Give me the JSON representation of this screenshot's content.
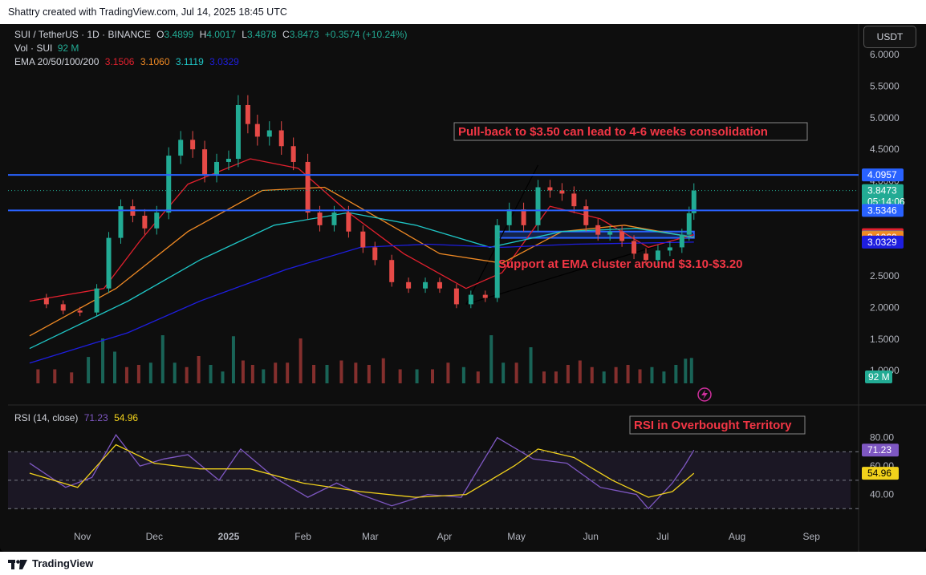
{
  "header": {
    "credit": "Shattry created with TradingView.com, Jul 14, 2025 18:45 UTC"
  },
  "legend": {
    "symbol": "SUI / TetherUS · 1D · BINANCE",
    "o_label": "O",
    "o": "3.4899",
    "h_label": "H",
    "h": "4.0017",
    "l_label": "L",
    "l": "3.4878",
    "c_label": "C",
    "c": "3.8473",
    "change": "+0.3574 (+10.24%)",
    "vol_label": "Vol · SUI",
    "vol": "92 M",
    "ema_label": "EMA 20/50/100/200",
    "ema20": "3.1506",
    "ema50": "3.1060",
    "ema100": "3.1119",
    "ema200": "3.0329",
    "rsi_label": "RSI (14, close)",
    "rsi": "71.23",
    "rsi_ma": "54.96"
  },
  "unit_button": "USDT",
  "footer": {
    "brand": "TradingView"
  },
  "colors": {
    "up": "#22ab94",
    "down": "#e64a47",
    "ema20": "#e2202e",
    "ema50": "#f08a24",
    "ema100": "#1fc6c6",
    "ema200": "#1e1ee0",
    "level": "#2962ff",
    "rsi": "#7e57c2",
    "rsi_ma": "#f2d21b",
    "annotation": "#f23645"
  },
  "chart_data": [
    {
      "type": "candlestick",
      "title": "SUI / TetherUS · 1D · BINANCE",
      "x_axis_labels": [
        "Nov",
        "Dec",
        "2025",
        "Feb",
        "Mar",
        "Apr",
        "May",
        "Jun",
        "Jul",
        "Aug",
        "Sep"
      ],
      "x_axis_dates": [
        "2024-11-01",
        "2024-12-01",
        "2025-01-01",
        "2025-02-01",
        "2025-03-01",
        "2025-04-01",
        "2025-05-01",
        "2025-06-01",
        "2025-07-01",
        "2025-08-01",
        "2025-09-01"
      ],
      "y_axis_labels": [
        "6.0000",
        "5.5000",
        "5.0000",
        "4.5000",
        "4.0000",
        "3.5000",
        "3.0000",
        "2.5000",
        "2.0000",
        "1.5000",
        "1.0000"
      ],
      "y_axis_values": [
        6.0,
        5.5,
        5.0,
        4.5,
        4.0,
        3.5,
        3.0,
        2.5,
        2.0,
        1.5,
        1.0
      ],
      "ylim": [
        0.8,
        6.1
      ],
      "price_series": {
        "name": "SUIUSDT",
        "points": [
          {
            "date": "2024-10-10",
            "close": 2.15
          },
          {
            "date": "2024-10-17",
            "close": 2.05
          },
          {
            "date": "2024-10-24",
            "close": 1.95
          },
          {
            "date": "2024-10-31",
            "close": 1.92
          },
          {
            "date": "2024-11-07",
            "close": 2.3
          },
          {
            "date": "2024-11-12",
            "close": 3.1
          },
          {
            "date": "2024-11-17",
            "close": 3.6
          },
          {
            "date": "2024-11-22",
            "close": 3.45
          },
          {
            "date": "2024-11-27",
            "close": 3.25
          },
          {
            "date": "2024-12-02",
            "close": 3.5
          },
          {
            "date": "2024-12-07",
            "close": 4.4
          },
          {
            "date": "2024-12-12",
            "close": 4.65
          },
          {
            "date": "2024-12-17",
            "close": 4.5
          },
          {
            "date": "2024-12-22",
            "close": 4.1
          },
          {
            "date": "2024-12-27",
            "close": 4.3
          },
          {
            "date": "2025-01-01",
            "close": 4.35
          },
          {
            "date": "2025-01-05",
            "close": 5.2
          },
          {
            "date": "2025-01-09",
            "close": 4.9
          },
          {
            "date": "2025-01-13",
            "close": 4.7
          },
          {
            "date": "2025-01-18",
            "close": 4.8
          },
          {
            "date": "2025-01-23",
            "close": 4.55
          },
          {
            "date": "2025-01-28",
            "close": 4.3
          },
          {
            "date": "2025-02-03",
            "close": 3.5
          },
          {
            "date": "2025-02-08",
            "close": 3.3
          },
          {
            "date": "2025-02-14",
            "close": 3.5
          },
          {
            "date": "2025-02-20",
            "close": 3.2
          },
          {
            "date": "2025-02-26",
            "close": 2.95
          },
          {
            "date": "2025-03-03",
            "close": 2.75
          },
          {
            "date": "2025-03-10",
            "close": 2.4
          },
          {
            "date": "2025-03-17",
            "close": 2.3
          },
          {
            "date": "2025-03-24",
            "close": 2.4
          },
          {
            "date": "2025-03-30",
            "close": 2.3
          },
          {
            "date": "2025-04-06",
            "close": 2.05
          },
          {
            "date": "2025-04-12",
            "close": 2.2
          },
          {
            "date": "2025-04-18",
            "close": 2.15
          },
          {
            "date": "2025-04-23",
            "close": 3.3
          },
          {
            "date": "2025-04-28",
            "close": 3.55
          },
          {
            "date": "2025-05-04",
            "close": 3.3
          },
          {
            "date": "2025-05-10",
            "close": 3.9
          },
          {
            "date": "2025-05-15",
            "close": 3.85
          },
          {
            "date": "2025-05-20",
            "close": 3.8
          },
          {
            "date": "2025-05-25",
            "close": 3.6
          },
          {
            "date": "2025-05-30",
            "close": 3.3
          },
          {
            "date": "2025-06-04",
            "close": 3.15
          },
          {
            "date": "2025-06-09",
            "close": 3.2
          },
          {
            "date": "2025-06-14",
            "close": 3.05
          },
          {
            "date": "2025-06-19",
            "close": 2.85
          },
          {
            "date": "2025-06-24",
            "close": 2.75
          },
          {
            "date": "2025-06-29",
            "close": 2.9
          },
          {
            "date": "2025-07-04",
            "close": 2.95
          },
          {
            "date": "2025-07-09",
            "close": 3.15
          },
          {
            "date": "2025-07-12",
            "close": 3.49
          },
          {
            "date": "2025-07-14",
            "close": 3.8473
          }
        ]
      },
      "ema_series": [
        {
          "name": "EMA 20",
          "last": 3.1506,
          "points": [
            [
              "2024-10-10",
              2.1
            ],
            [
              "2024-11-10",
              2.3
            ],
            [
              "2024-11-25",
              3.05
            ],
            [
              "2024-12-15",
              3.95
            ],
            [
              "2025-01-10",
              4.35
            ],
            [
              "2025-01-30",
              4.2
            ],
            [
              "2025-02-20",
              3.5
            ],
            [
              "2025-03-15",
              2.85
            ],
            [
              "2025-04-10",
              2.3
            ],
            [
              "2025-04-25",
              2.55
            ],
            [
              "2025-05-15",
              3.6
            ],
            [
              "2025-06-05",
              3.4
            ],
            [
              "2025-06-25",
              2.95
            ],
            [
              "2025-07-14",
              3.1506
            ]
          ]
        },
        {
          "name": "EMA 50",
          "last": 3.106,
          "points": [
            [
              "2024-10-10",
              1.55
            ],
            [
              "2024-11-15",
              2.3
            ],
            [
              "2024-12-15",
              3.2
            ],
            [
              "2025-01-15",
              3.85
            ],
            [
              "2025-02-10",
              3.9
            ],
            [
              "2025-03-05",
              3.4
            ],
            [
              "2025-03-30",
              2.85
            ],
            [
              "2025-04-25",
              2.7
            ],
            [
              "2025-05-20",
              3.2
            ],
            [
              "2025-06-15",
              3.3
            ],
            [
              "2025-07-14",
              3.106
            ]
          ]
        },
        {
          "name": "EMA 100",
          "last": 3.1119,
          "points": [
            [
              "2024-10-10",
              1.35
            ],
            [
              "2024-11-20",
              2.1
            ],
            [
              "2024-12-20",
              2.75
            ],
            [
              "2025-01-20",
              3.3
            ],
            [
              "2025-02-20",
              3.5
            ],
            [
              "2025-03-20",
              3.3
            ],
            [
              "2025-04-20",
              2.95
            ],
            [
              "2025-05-20",
              3.2
            ],
            [
              "2025-06-20",
              3.25
            ],
            [
              "2025-07-14",
              3.1119
            ]
          ]
        },
        {
          "name": "EMA 200",
          "last": 3.0329,
          "points": [
            [
              "2024-10-10",
              1.12
            ],
            [
              "2024-11-20",
              1.6
            ],
            [
              "2024-12-20",
              2.1
            ],
            [
              "2025-01-25",
              2.6
            ],
            [
              "2025-02-25",
              2.95
            ],
            [
              "2025-03-25",
              3.0
            ],
            [
              "2025-04-25",
              2.95
            ],
            [
              "2025-05-25",
              3.0
            ],
            [
              "2025-06-25",
              3.02
            ],
            [
              "2025-07-14",
              3.0329
            ]
          ]
        }
      ],
      "horizontal_levels": [
        {
          "label": "4.0957",
          "value": 4.0957
        },
        {
          "label": "3.5346",
          "value": 3.5346
        }
      ],
      "support_zone": {
        "from": 3.1,
        "to": 3.2,
        "start": "2025-04-23",
        "end": "2025-07-14"
      },
      "trendlines": [
        {
          "from": [
            "2025-04-10",
            2.05
          ],
          "to": [
            "2025-05-10",
            4.25
          ]
        },
        {
          "from": [
            "2025-04-10",
            2.05
          ],
          "to": [
            "2025-07-14",
            3.15
          ]
        }
      ],
      "price_labels": [
        {
          "text": "4.0957",
          "value": 4.0957,
          "color": "#2962ff"
        },
        {
          "text": "3.8473",
          "value": 3.8473,
          "color": "#22ab94"
        },
        {
          "text": "05:14:06",
          "value": 3.67,
          "color": "#22ab94"
        },
        {
          "text": "3.5346",
          "value": 3.5346,
          "color": "#2962ff"
        },
        {
          "text": "3.1506",
          "value": 3.1506,
          "color": "#e2202e"
        },
        {
          "text": "3.1119",
          "value": 3.1119,
          "color": "#1fc6c6"
        },
        {
          "text": "3.1060",
          "value": 3.106,
          "color": "#f08a24"
        },
        {
          "text": "3.0329",
          "value": 3.0329,
          "color": "#1e1ee0"
        }
      ],
      "volume": {
        "last_label": "92 M"
      },
      "annotations": [
        {
          "text": "Pull-back to $3.50 can lead to 4-6 weeks  consolidation",
          "boxed": true
        },
        {
          "text": "Support at EMA cluster around $3.10-$3.20",
          "boxed": false
        }
      ]
    },
    {
      "type": "line",
      "title": "RSI (14, close)",
      "y_axis_labels": [
        "80.00",
        "60.00",
        "40.00"
      ],
      "y_axis_values": [
        80,
        60,
        40
      ],
      "ylim": [
        20,
        90
      ],
      "band": [
        30,
        70
      ],
      "series": [
        {
          "name": "RSI",
          "last": 71.23,
          "points": [
            [
              "2024-10-10",
              62
            ],
            [
              "2024-10-25",
              45
            ],
            [
              "2024-11-05",
              52
            ],
            [
              "2024-11-15",
              82
            ],
            [
              "2024-11-25",
              60
            ],
            [
              "2024-12-05",
              65
            ],
            [
              "2024-12-15",
              68
            ],
            [
              "2024-12-28",
              50
            ],
            [
              "2025-01-06",
              72
            ],
            [
              "2025-01-20",
              52
            ],
            [
              "2025-02-03",
              38
            ],
            [
              "2025-02-15",
              48
            ],
            [
              "2025-02-25",
              40
            ],
            [
              "2025-03-10",
              32
            ],
            [
              "2025-03-25",
              40
            ],
            [
              "2025-04-08",
              38
            ],
            [
              "2025-04-23",
              80
            ],
            [
              "2025-05-08",
              65
            ],
            [
              "2025-05-22",
              62
            ],
            [
              "2025-06-05",
              45
            ],
            [
              "2025-06-20",
              40
            ],
            [
              "2025-06-25",
              30
            ],
            [
              "2025-07-05",
              48
            ],
            [
              "2025-07-10",
              60
            ],
            [
              "2025-07-14",
              71.23
            ]
          ]
        },
        {
          "name": "RSI MA",
          "last": 54.96,
          "points": [
            [
              "2024-10-10",
              55
            ],
            [
              "2024-10-30",
              45
            ],
            [
              "2024-11-15",
              75
            ],
            [
              "2024-12-01",
              62
            ],
            [
              "2024-12-20",
              58
            ],
            [
              "2025-01-10",
              58
            ],
            [
              "2025-02-01",
              48
            ],
            [
              "2025-02-25",
              42
            ],
            [
              "2025-03-20",
              38
            ],
            [
              "2025-04-10",
              40
            ],
            [
              "2025-04-30",
              60
            ],
            [
              "2025-05-10",
              72
            ],
            [
              "2025-05-25",
              66
            ],
            [
              "2025-06-10",
              50
            ],
            [
              "2025-06-25",
              38
            ],
            [
              "2025-07-05",
              42
            ],
            [
              "2025-07-14",
              54.96
            ]
          ]
        }
      ],
      "price_labels": [
        {
          "text": "71.23",
          "value": 71.23,
          "color": "#7e57c2"
        },
        {
          "text": "54.96",
          "value": 54.96,
          "color": "#f2d21b"
        }
      ],
      "annotations": [
        {
          "text": "RSI in Overbought Territory",
          "boxed": true
        }
      ]
    }
  ]
}
